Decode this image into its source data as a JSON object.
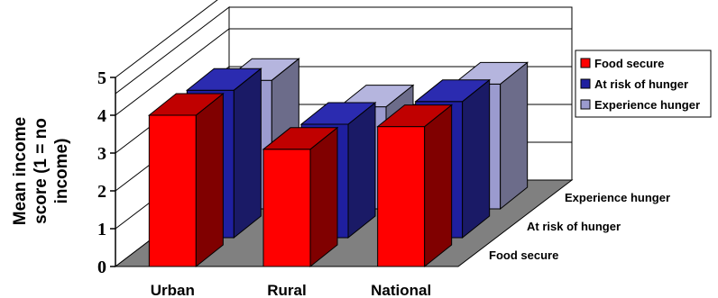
{
  "chart_data": {
    "type": "bar",
    "title": "",
    "xlabel": "",
    "ylabel_lines": [
      "Mean income",
      "score (1 = no",
      "income)"
    ],
    "ylim": [
      0,
      5
    ],
    "yticks": [
      "0",
      "1",
      "2",
      "3",
      "4",
      "5"
    ],
    "categories": [
      "Urban",
      "Rural",
      "National"
    ],
    "depth_labels": [
      "Experience hunger",
      "At risk of hunger",
      "Food secure"
    ],
    "series": [
      {
        "name": "Food secure",
        "values": [
          4.0,
          3.1,
          3.7
        ],
        "color": "#ff0000",
        "side_color": "#800000",
        "top_color": "#c00000"
      },
      {
        "name": "At risk of hunger",
        "values": [
          3.9,
          3.0,
          3.6
        ],
        "color": "#1f1f9f",
        "side_color": "#1a1a66",
        "top_color": "#2b2bb0"
      },
      {
        "name": "Experience hunger",
        "values": [
          3.4,
          2.7,
          3.3
        ],
        "color": "#9b9bcf",
        "side_color": "#6c6c8a",
        "top_color": "#b5b5de"
      }
    ],
    "legend_position": "right",
    "grid": true,
    "colors": {
      "floor": "#808080",
      "grid": "#000000",
      "background": "#ffffff"
    }
  }
}
